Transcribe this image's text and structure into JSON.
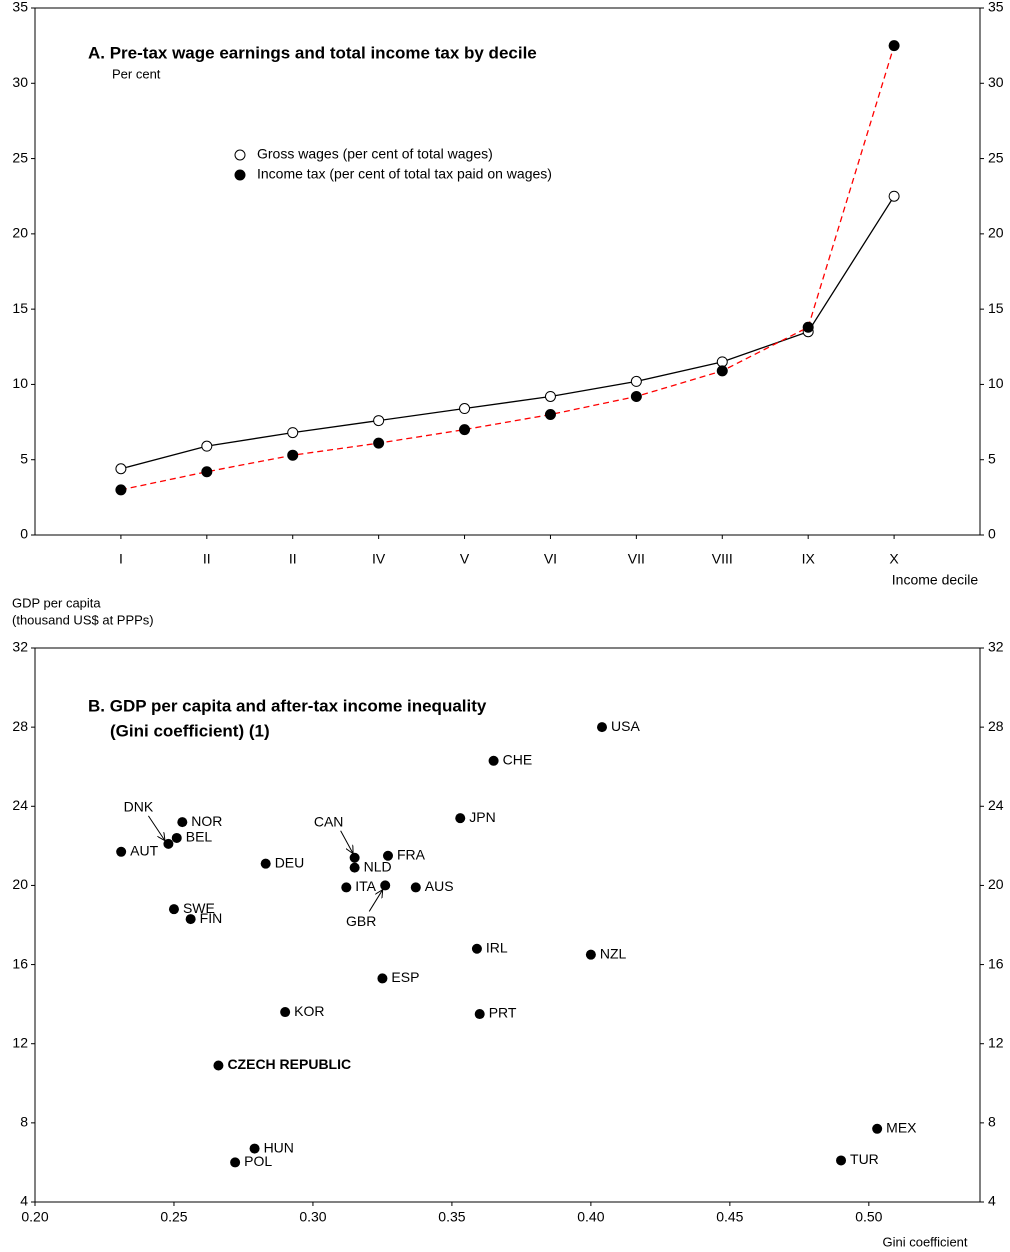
{
  "chart_data": [
    {
      "type": "line",
      "title": "A. Pre-tax wage earnings and total income tax by decile",
      "subtitle": "Per cent",
      "x_label": "Income decile",
      "categories": [
        "I",
        "II",
        "II",
        "IV",
        "V",
        "VI",
        "VII",
        "VIII",
        "IX",
        "X"
      ],
      "series": [
        {
          "name": "Gross wages (per cent of total wages)",
          "color": "#000000",
          "line_style": "solid",
          "marker": "open",
          "values": [
            4.4,
            5.9,
            6.8,
            7.6,
            8.4,
            9.2,
            10.2,
            11.5,
            13.5,
            22.5
          ]
        },
        {
          "name": "Income tax (per cent of total tax paid on wages)",
          "color": "#ff0000",
          "line_style": "dashed",
          "marker": "filled",
          "values": [
            3.0,
            4.2,
            5.3,
            6.1,
            7.0,
            8.0,
            9.2,
            10.9,
            13.8,
            32.5
          ]
        }
      ],
      "ylim": [
        0,
        35
      ],
      "yticks": [
        0,
        5,
        10,
        15,
        20,
        25,
        30,
        35
      ],
      "mirror_y": true
    },
    {
      "type": "scatter",
      "title": [
        "B. GDP per capita and after-tax income inequality",
        "(Gini coefficient) (1)"
      ],
      "y_label": [
        "GDP per capita",
        "(thousand US$ at PPPs)"
      ],
      "x_label": "Gini coefficient",
      "color": "#000000",
      "labels": [
        "USA",
        "CHE",
        "JPN",
        "NOR",
        "BEL",
        "DNK",
        "AUT",
        "DEU",
        "CAN",
        "NLD",
        "FRA",
        "ITA",
        "GBR",
        "AUS",
        "SWE",
        "FIN",
        "IRL",
        "NZL",
        "ESP",
        "KOR",
        "PRT",
        "CZECH REPUBLIC",
        "HUN",
        "POL",
        "MEX",
        "TUR"
      ],
      "x": [
        0.404,
        0.365,
        0.353,
        0.253,
        0.251,
        0.248,
        0.231,
        0.283,
        0.315,
        0.315,
        0.327,
        0.312,
        0.326,
        0.337,
        0.25,
        0.256,
        0.359,
        0.4,
        0.325,
        0.29,
        0.36,
        0.266,
        0.279,
        0.272,
        0.503,
        0.49
      ],
      "y": [
        28.0,
        26.3,
        23.4,
        23.2,
        22.4,
        22.1,
        21.7,
        21.1,
        21.4,
        20.9,
        21.5,
        19.9,
        20.0,
        19.9,
        18.8,
        18.3,
        16.8,
        16.5,
        15.3,
        13.6,
        13.5,
        10.9,
        6.7,
        6.0,
        7.7,
        6.1
      ],
      "xlim": [
        0.2,
        0.54
      ],
      "xticks": [
        {
          "value": 0.2,
          "label": "0.20"
        },
        0.25,
        {
          "value": 0.3,
          "label": "0.30"
        },
        0.35,
        {
          "value": 0.4,
          "label": "0.40"
        },
        0.45,
        {
          "value": 0.5,
          "label": "0.50"
        }
      ],
      "ylim": [
        4,
        32
      ],
      "yticks": [
        4,
        8,
        12,
        16,
        20,
        24,
        28,
        32
      ],
      "mirror_y": true
    }
  ]
}
